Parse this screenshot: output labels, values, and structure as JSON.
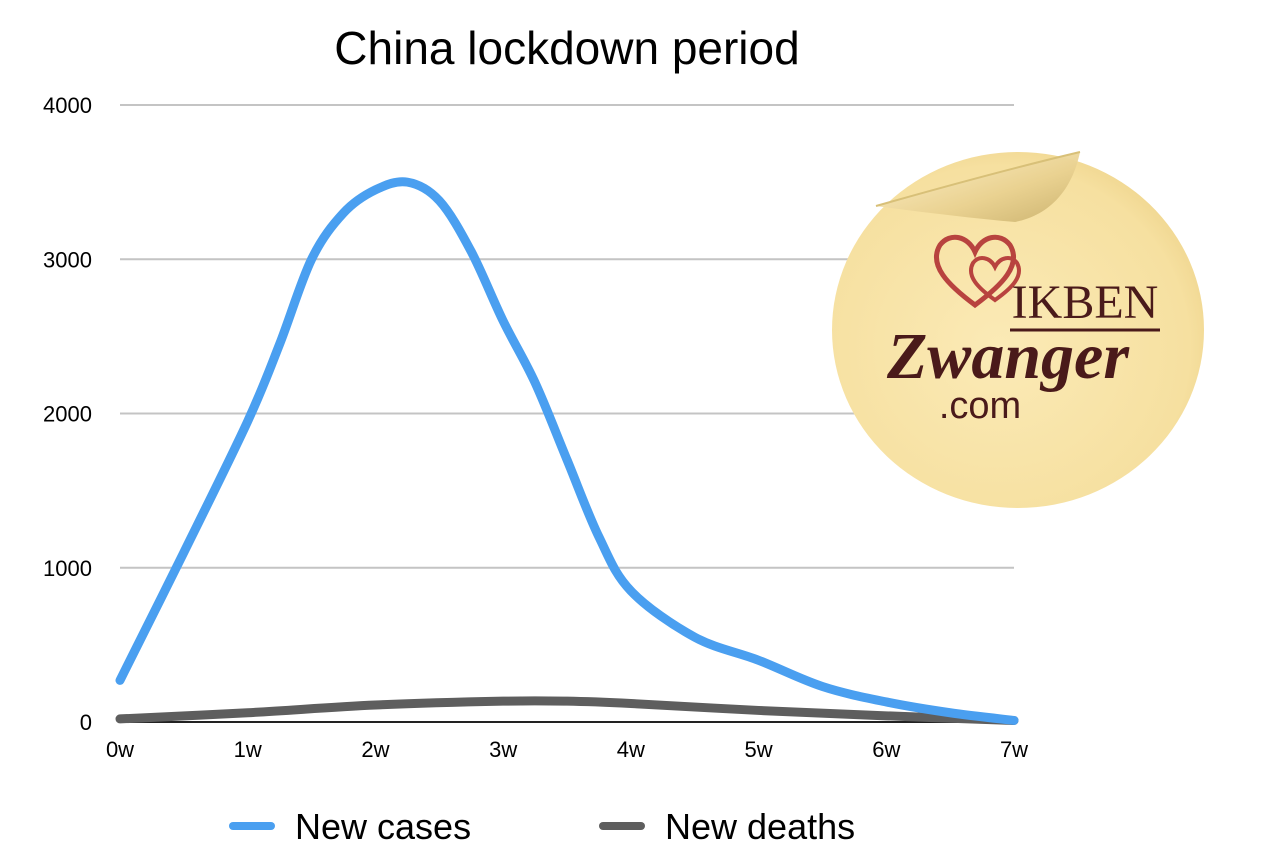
{
  "chart_data": {
    "type": "line",
    "title": "China lockdown period",
    "xlabel": "",
    "ylabel": "",
    "categories": [
      "0w",
      "1w",
      "2w",
      "3w",
      "4w",
      "5w",
      "6w",
      "7w"
    ],
    "ylim": [
      0,
      4000
    ],
    "yticks": [
      0,
      1000,
      2000,
      3000,
      4000
    ],
    "grid": true,
    "legend_position": "bottom",
    "smooth": true,
    "series": [
      {
        "name": "New cases",
        "color": "#4a9ff0",
        "x": [
          0,
          0.5,
          1,
          1.25,
          1.5,
          1.75,
          2,
          2.25,
          2.5,
          2.75,
          3,
          3.25,
          3.5,
          3.75,
          4,
          4.5,
          5,
          5.5,
          6,
          6.5,
          7
        ],
        "values": [
          270,
          1100,
          1950,
          2450,
          3000,
          3300,
          3450,
          3500,
          3380,
          3050,
          2600,
          2200,
          1700,
          1200,
          850,
          550,
          400,
          230,
          130,
          60,
          10
        ]
      },
      {
        "name": "New deaths",
        "color": "#5e5e5e",
        "x": [
          0,
          1,
          2,
          3,
          3.5,
          4,
          5,
          6,
          7
        ],
        "values": [
          20,
          60,
          110,
          135,
          135,
          120,
          75,
          40,
          10
        ]
      }
    ]
  },
  "watermark": {
    "line1": "IKBEN",
    "line2": "Zwanger",
    "line3": ".com",
    "icon": "hearts-icon",
    "sticker_color": "#f8e3a4"
  }
}
